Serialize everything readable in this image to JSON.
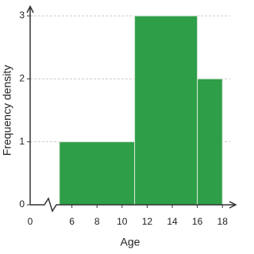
{
  "chart_data": {
    "type": "histogram",
    "xlabel": "Age",
    "ylabel": "Frequency density",
    "bins": [
      5,
      11,
      16,
      18
    ],
    "values": [
      1,
      3,
      2
    ],
    "color": "#2e9e48",
    "xlim": [
      4,
      19
    ],
    "xticks": [
      0,
      6,
      8,
      10,
      12,
      14,
      16,
      18
    ],
    "axis_break": true,
    "ylim": [
      0,
      3
    ],
    "yticks": [
      0,
      1,
      2,
      3
    ],
    "grid": true
  }
}
